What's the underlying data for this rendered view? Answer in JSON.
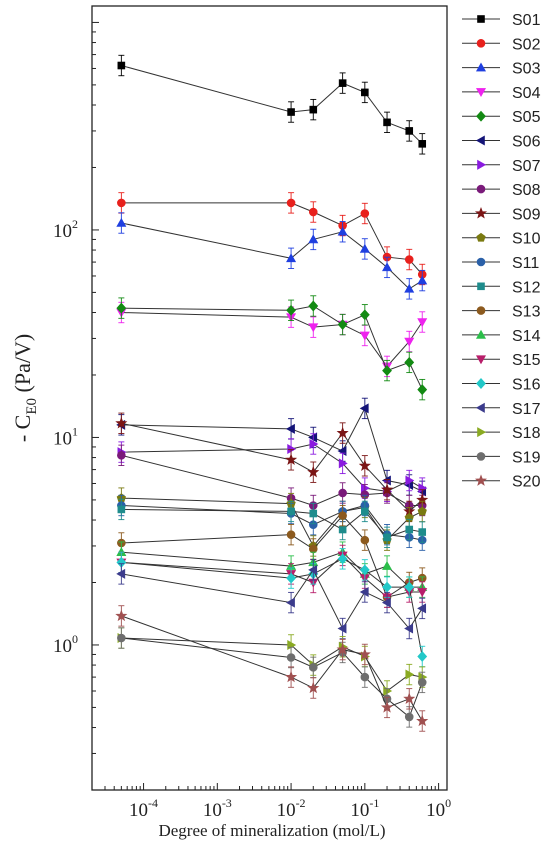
{
  "chart_data": {
    "type": "line",
    "xlabel": "Degree of mineralization (mol/L)",
    "ylabel": {
      "prefix": "- C",
      "subscript": "E0",
      "suffix": " (Pa/V)"
    },
    "xscale": "log",
    "yscale": "log",
    "xlim": [
      2e-05,
      1.3
    ],
    "ylim": [
      0.2,
      1200
    ],
    "x_ticks": [
      {
        "value": 0.0001,
        "label": "10",
        "exp": "-4"
      },
      {
        "value": 0.001,
        "label": "10",
        "exp": "-3"
      },
      {
        "value": 0.01,
        "label": "10",
        "exp": "-2"
      },
      {
        "value": 0.1,
        "label": "10",
        "exp": "-1"
      },
      {
        "value": 1,
        "label": "10",
        "exp": "0"
      }
    ],
    "y_ticks": [
      {
        "value": 1,
        "label": "10",
        "exp": "0"
      },
      {
        "value": 10,
        "label": "10",
        "exp": "1"
      },
      {
        "value": 100,
        "label": "10",
        "exp": "2"
      }
    ],
    "grid": false,
    "legend": "right",
    "x": [
      5e-05,
      0.01,
      0.02,
      0.05,
      0.1,
      0.2,
      0.4,
      0.6
    ],
    "series": [
      {
        "name": "S01",
        "color": "#000000",
        "marker": "square",
        "values": [
          620,
          370,
          380,
          510,
          460,
          330,
          300,
          260
        ]
      },
      {
        "name": "S02",
        "color": "#e8201c",
        "marker": "circle",
        "values": [
          135,
          135,
          122,
          105,
          120,
          74,
          72,
          61
        ]
      },
      {
        "name": "S03",
        "color": "#1f3fe0",
        "marker": "triangle-up",
        "values": [
          108,
          73,
          90,
          98,
          81,
          66,
          52,
          57
        ]
      },
      {
        "name": "S04",
        "color": "#ee22ee",
        "marker": "triangle-down",
        "values": [
          40,
          38,
          34,
          35,
          31,
          22,
          29,
          36
        ]
      },
      {
        "name": "S05",
        "color": "#138a13",
        "marker": "diamond",
        "values": [
          42,
          41,
          43,
          35,
          39,
          21,
          23,
          17
        ]
      },
      {
        "name": "S06",
        "color": "#141478",
        "marker": "triangle-left",
        "values": [
          11.5,
          11.0,
          10.0,
          8.6,
          13.8,
          6.2,
          5.9,
          5.5
        ]
      },
      {
        "name": "S07",
        "color": "#8a1ae0",
        "marker": "triangle-right",
        "values": [
          8.5,
          8.8,
          9.3,
          7.5,
          5.7,
          5.5,
          6.2,
          5.7
        ]
      },
      {
        "name": "S08",
        "color": "#7a1a7a",
        "marker": "circle",
        "values": [
          8.2,
          5.1,
          4.7,
          5.4,
          5.3,
          5.4,
          4.7,
          4.7
        ]
      },
      {
        "name": "S09",
        "color": "#7b1515",
        "marker": "star",
        "values": [
          11.7,
          7.8,
          6.8,
          10.5,
          7.3,
          5.6,
          4.4,
          5.0
        ]
      },
      {
        "name": "S10",
        "color": "#7a7a10",
        "marker": "pentagon",
        "values": [
          5.1,
          4.8,
          3.0,
          4.4,
          4.6,
          3.2,
          4.1,
          4.4
        ]
      },
      {
        "name": "S11",
        "color": "#2a60a8",
        "marker": "circle",
        "values": [
          4.7,
          4.3,
          3.8,
          4.4,
          4.7,
          3.4,
          3.3,
          3.2
        ]
      },
      {
        "name": "S12",
        "color": "#1e8c8c",
        "marker": "square",
        "values": [
          4.5,
          4.4,
          4.3,
          3.6,
          4.4,
          3.3,
          3.6,
          3.5
        ]
      },
      {
        "name": "S13",
        "color": "#8c5a1e",
        "marker": "circle",
        "values": [
          3.1,
          3.4,
          2.9,
          4.2,
          3.2,
          1.7,
          2.0,
          2.1
        ]
      },
      {
        "name": "S14",
        "color": "#2bbe4a",
        "marker": "triangle-up",
        "values": [
          2.8,
          2.4,
          2.5,
          2.8,
          2.2,
          2.4,
          1.9,
          1.9
        ]
      },
      {
        "name": "S15",
        "color": "#b81e6a",
        "marker": "triangle-down",
        "values": [
          2.5,
          2.2,
          2.0,
          2.7,
          2.1,
          1.7,
          1.8,
          1.8
        ]
      },
      {
        "name": "S16",
        "color": "#22c8c8",
        "marker": "diamond",
        "values": [
          2.5,
          2.1,
          2.2,
          2.6,
          2.3,
          1.9,
          1.9,
          0.88
        ]
      },
      {
        "name": "S17",
        "color": "#3b3b8c",
        "marker": "triangle-left",
        "values": [
          2.2,
          1.6,
          2.3,
          1.2,
          1.8,
          1.6,
          1.2,
          1.5
        ]
      },
      {
        "name": "S18",
        "color": "#8aaa22",
        "marker": "triangle-right",
        "values": [
          1.08,
          1.0,
          0.8,
          0.98,
          0.88,
          0.6,
          0.72,
          0.7
        ]
      },
      {
        "name": "S19",
        "color": "#6e6e6e",
        "marker": "circle",
        "values": [
          1.08,
          0.87,
          0.78,
          0.92,
          0.7,
          0.55,
          0.45,
          0.66
        ]
      },
      {
        "name": "S20",
        "color": "#a05050",
        "marker": "star",
        "values": [
          1.38,
          0.7,
          0.62,
          0.95,
          0.9,
          0.5,
          0.55,
          0.43
        ]
      }
    ]
  }
}
